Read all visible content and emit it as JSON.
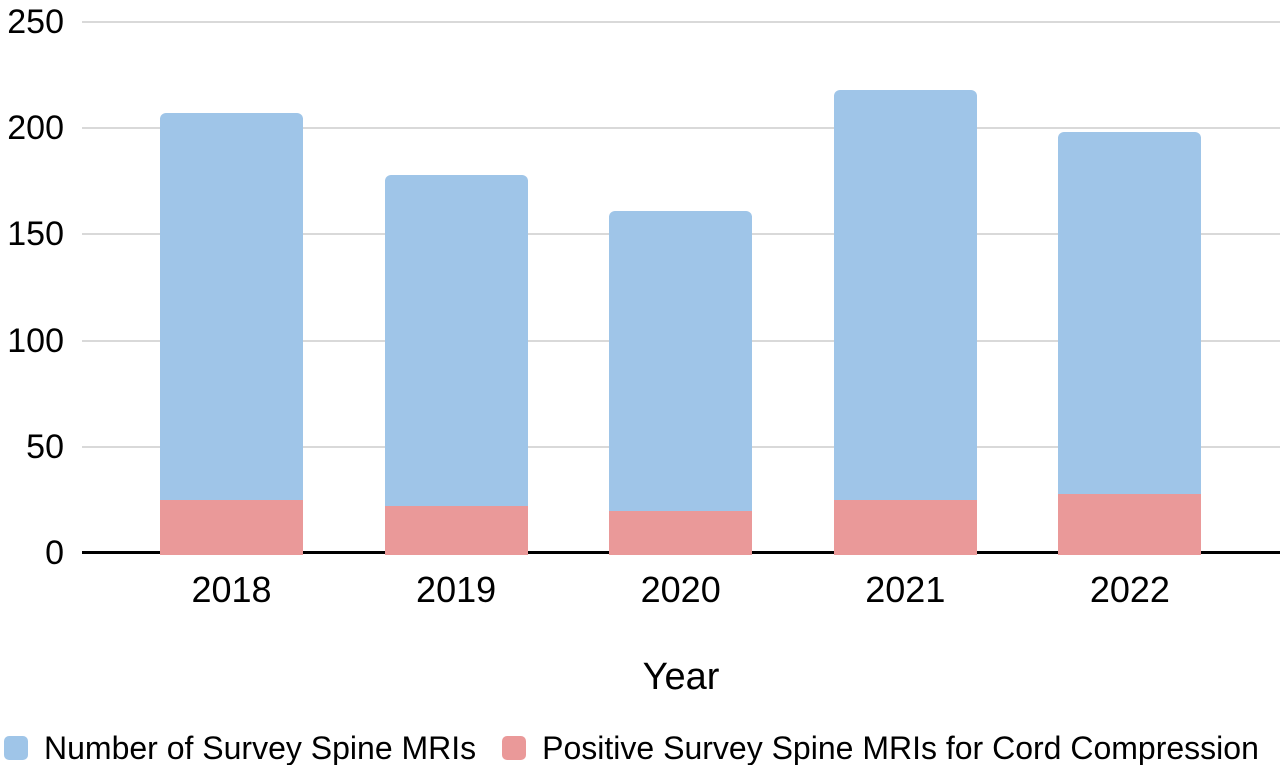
{
  "chart_data": {
    "type": "bar",
    "variant": "overlay-stacked",
    "categories": [
      "2018",
      "2019",
      "2020",
      "2021",
      "2022"
    ],
    "series": [
      {
        "name": "Number of Survey Spine MRIs",
        "color": "#9fc5e8",
        "values": [
          207,
          178,
          161,
          218,
          198
        ]
      },
      {
        "name": "Positive Survey Spine MRIs for Cord Compression",
        "color": "#ea9999",
        "values": [
          25,
          22,
          20,
          25,
          28
        ]
      }
    ],
    "title": "",
    "xlabel": "Year",
    "ylabel": "",
    "ylim": [
      0,
      250
    ],
    "yticks": [
      0,
      50,
      100,
      150,
      200,
      250
    ],
    "grid": true,
    "gridline_color": "#d9d9d9",
    "axis_line_color": "#000000",
    "text_color": "#000000",
    "legend_position": "bottom",
    "background_color": "#ffffff"
  }
}
